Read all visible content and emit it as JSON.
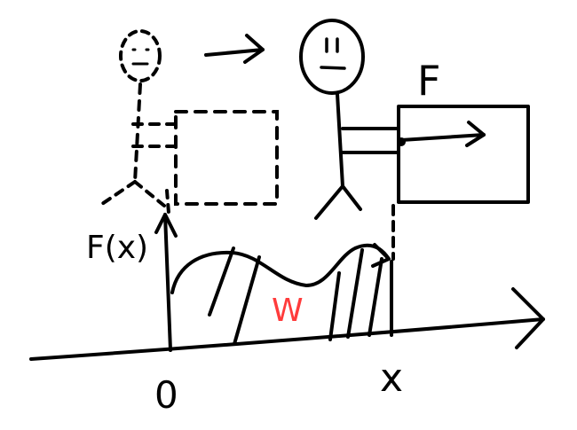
{
  "labels": {
    "force": "F",
    "force_function": "F(x)",
    "work": "W",
    "origin": "0",
    "position": "x"
  },
  "colors": {
    "ink": "#000000",
    "work_label": "#ff3b3b",
    "background": "#ffffff"
  }
}
